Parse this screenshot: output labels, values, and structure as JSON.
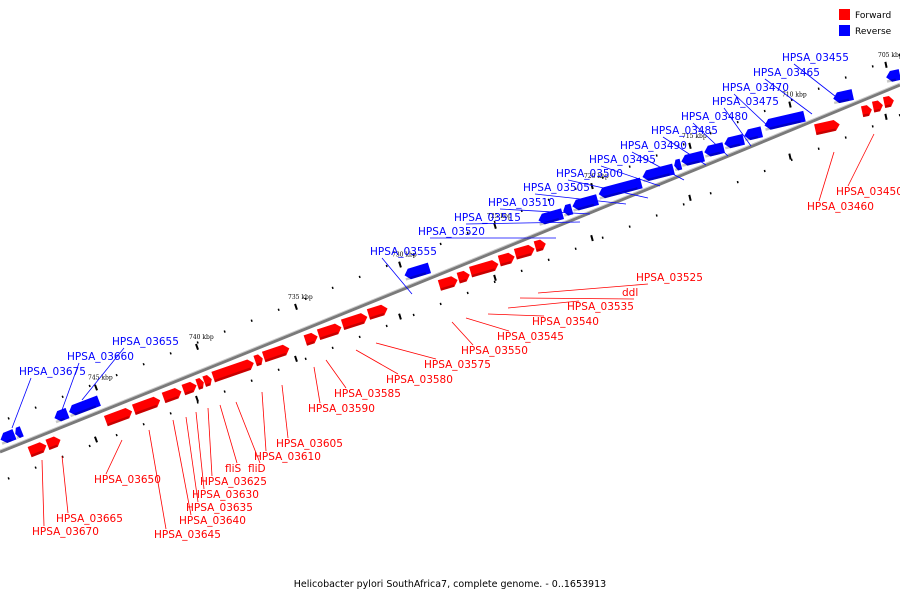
{
  "colors": {
    "forward": "#ff0000",
    "reverse": "#0000ff"
  },
  "legend": [
    {
      "label": "Forward",
      "color": "#ff0000"
    },
    {
      "label": "Reverse",
      "color": "#0000ff"
    }
  ],
  "caption": "Helicobacter pylori SouthAfrica7, complete genome. - 0..1653913",
  "scale_labels": [
    "705 kbp",
    "710 kbp",
    "715 kbp",
    "720 kbp",
    "725 kbp",
    "730 kbp",
    "735 kbp",
    "740 kbp",
    "745 kbp"
  ],
  "reverse_genes": [
    "HPSA_03455",
    "HPSA_03465",
    "HPSA_03470",
    "HPSA_03475",
    "HPSA_03480",
    "HPSA_03485",
    "HPSA_03490",
    "HPSA_03495",
    "HPSA_03500",
    "HPSA_03505",
    "HPSA_03510",
    "HPSA_03515",
    "HPSA_03520",
    "HPSA_03555",
    "HPSA_03655",
    "HPSA_03660",
    "HPSA_03675"
  ],
  "forward_genes": [
    "HPSA_03450",
    "HPSA_03460",
    "HPSA_03525",
    "ddl",
    "HPSA_03535",
    "HPSA_03540",
    "HPSA_03545",
    "HPSA_03550",
    "HPSA_03575",
    "HPSA_03580",
    "HPSA_03585",
    "HPSA_03590",
    "HPSA_03605",
    "HPSA_03610",
    "fliD",
    "fliS",
    "HPSA_03625",
    "HPSA_03630",
    "HPSA_03635",
    "HPSA_03640",
    "HPSA_03645",
    "HPSA_03650",
    "HPSA_03665",
    "HPSA_03670"
  ]
}
